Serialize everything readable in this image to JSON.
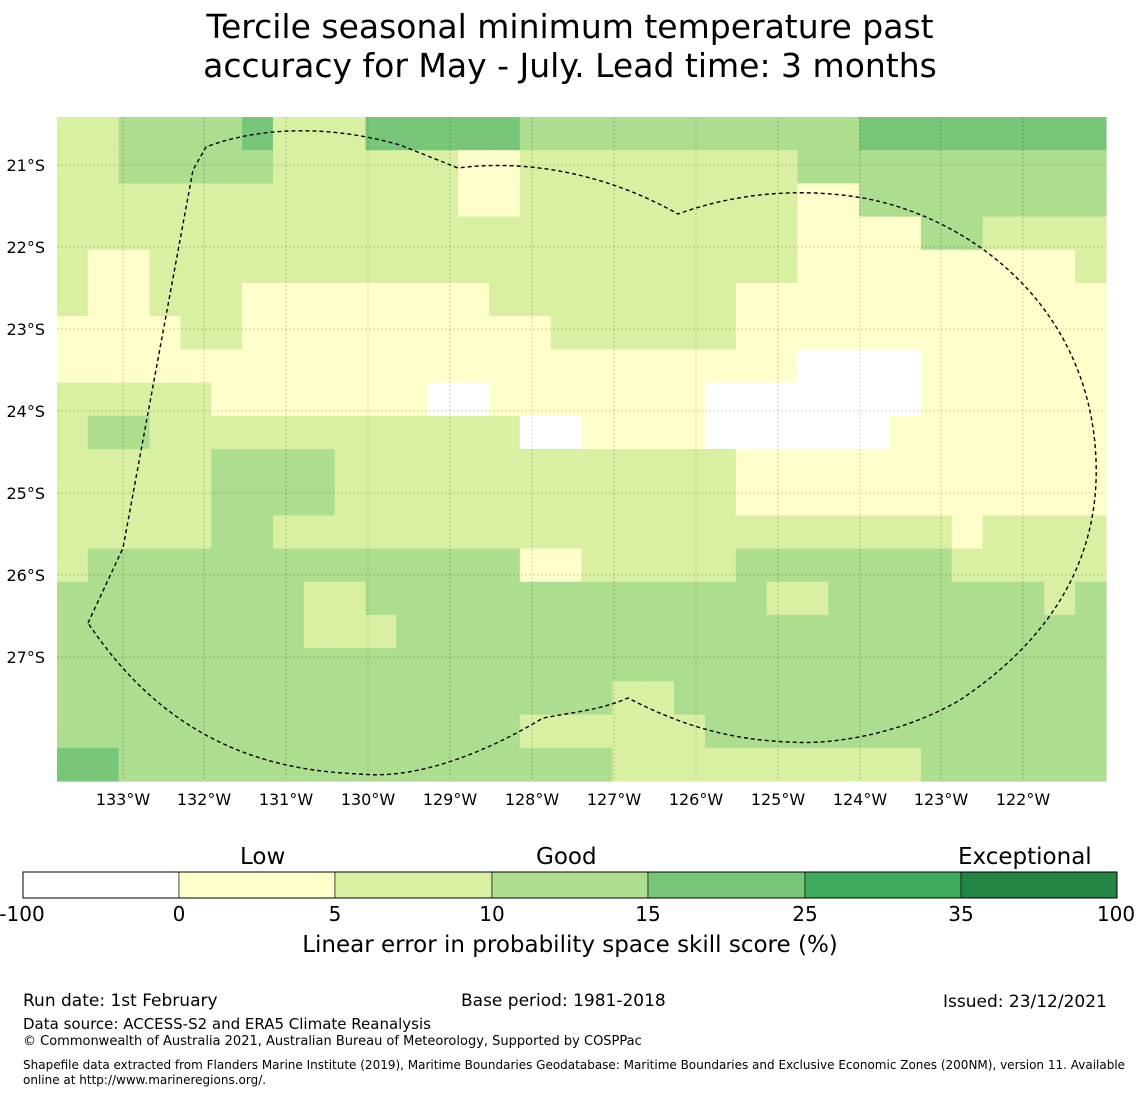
{
  "title": {
    "line1": "Tercile seasonal minimum temperature past",
    "line2": "accuracy for May - July. Lead time: 3 months"
  },
  "map": {
    "lat_labels": [
      "21°S",
      "22°S",
      "23°S",
      "24°S",
      "25°S",
      "26°S",
      "27°S"
    ],
    "lon_labels": [
      "133°W",
      "132°W",
      "131°W",
      "130°W",
      "129°W",
      "128°W",
      "127°W",
      "126°W",
      "125°W",
      "124°W",
      "123°W",
      "122°W"
    ],
    "colors": {
      "0": "#ffffff",
      "1": "#ffffcc",
      "2": "#d9f0a3",
      "3": "#addd8e",
      "4": "#78c679",
      "5": "#41ab5d",
      "6": "#238443"
    },
    "grid_rows": [
      "2233334222444443333333333344444444",
      "2233333222222112222222223333333333",
      "2222222222222112222222221133333333",
      "2222222222222222222222221111332222",
      "2112222222222222222222221111111112",
      "2112221111111122222222111111111111",
      "1111221111111111222222111111111111",
      "1111111111111111111111110000111111",
      "2222211111110011111110000000111111",
      "2332222222222220011110000001111111",
      "2222233332222222222222111111111111",
      "2222233332222222222222111111111111",
      "2222233222222222222222222222212222",
      "2333333333333331122222333333322222",
      "3333333322333333333333322333333323",
      "3333333322233333333333333333333333",
      "3333333333333333333333333333333333",
      "3333333333333333332233333333333333",
      "3333333333333332222223333333333333",
      "4433333333333333332222222222333333"
    ]
  },
  "legend": {
    "categories": [
      "Low",
      "Good",
      "Exceptional"
    ],
    "bins": [
      {
        "from": -100,
        "to": 0,
        "color": "#ffffff"
      },
      {
        "from": 0,
        "to": 5,
        "color": "#ffffcc"
      },
      {
        "from": 5,
        "to": 10,
        "color": "#d9f0a3"
      },
      {
        "from": 10,
        "to": 15,
        "color": "#addd8e"
      },
      {
        "from": 15,
        "to": 25,
        "color": "#78c679"
      },
      {
        "from": 25,
        "to": 35,
        "color": "#41ab5d"
      },
      {
        "from": 35,
        "to": 100,
        "color": "#238443"
      }
    ],
    "ticks": [
      "-100",
      "0",
      "5",
      "10",
      "15",
      "25",
      "35",
      "100"
    ],
    "axis_title": "Linear error in probability space skill score (%)"
  },
  "footer": {
    "run_date": "Run date: 1st February",
    "base_period": "Base period: 1981-2018",
    "issued": "Issued: 23/12/2021",
    "data_source": "Data source: ACCESS-S2 and ERA5 Climate Reanalysis",
    "copyright": "© Commonwealth of Australia 2021, Australian Bureau of Meteorology, Supported by COSPPac",
    "shapefile_line1": "Shapefile data extracted from Flanders Marine Institute (2019), Maritime Boundaries Geodatabase: Maritime Boundaries and Exclusive Economic Zones (200NM), version 11. Available",
    "shapefile_line2": "online at http://www.marineregions.org/."
  }
}
